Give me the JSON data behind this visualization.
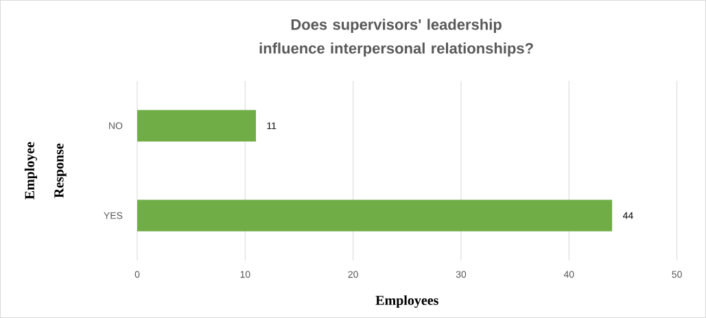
{
  "chart_data": {
    "type": "bar",
    "orientation": "horizontal",
    "title": "Does supervisors' leadership influence interpersonal relationships?",
    "xlabel": "Employees",
    "ylabel": "Employee Response",
    "categories": [
      "NO",
      "YES"
    ],
    "values": [
      11,
      44
    ],
    "color": "#70ad47",
    "xlim": [
      0,
      50
    ],
    "xticks": [
      0,
      10,
      20,
      30,
      40,
      50
    ],
    "grid": "x",
    "data_labels": true
  }
}
